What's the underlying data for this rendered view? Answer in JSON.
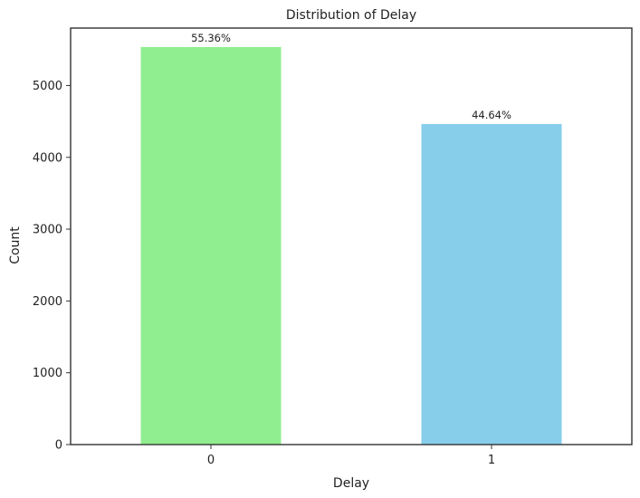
{
  "chart_data": {
    "type": "bar",
    "title": "Distribution of Delay",
    "xlabel": "Delay",
    "ylabel": "Count",
    "categories": [
      "0",
      "1"
    ],
    "values": [
      5536,
      4464
    ],
    "data_labels": [
      "55.36%",
      "44.64%"
    ],
    "colors": [
      "#90ee90",
      "#87ceeb"
    ],
    "ylim": [
      0,
      5800
    ],
    "yticks": [
      0,
      1000,
      2000,
      3000,
      4000,
      5000
    ],
    "grid": false,
    "legend": "none"
  }
}
